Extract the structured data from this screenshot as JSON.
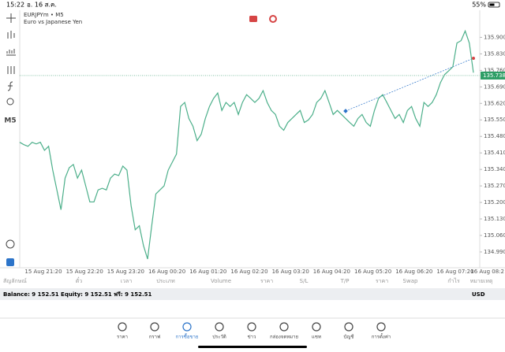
{
  "status": {
    "time": "15:22",
    "date": "อ. 16 ส.ค.",
    "battery": "55%"
  },
  "toolbar": {
    "timeframe": "M5"
  },
  "chart_data": {
    "type": "line",
    "title": "EURJPYm • M5",
    "subtitle": "Euro vs Japanese Yen",
    "color": "#4caf8a",
    "values": [
      135.455,
      135.445,
      135.438,
      135.455,
      135.448,
      135.455,
      135.421,
      135.438,
      135.337,
      135.253,
      135.169,
      135.303,
      135.347,
      135.361,
      135.303,
      135.337,
      135.27,
      135.202,
      135.202,
      135.253,
      135.26,
      135.253,
      135.303,
      135.32,
      135.314,
      135.354,
      135.337,
      135.186,
      135.084,
      135.101,
      135.017,
      134.96,
      135.101,
      135.236,
      135.253,
      135.27,
      135.337,
      135.371,
      135.405,
      135.607,
      135.624,
      135.556,
      135.523,
      135.462,
      135.489,
      135.556,
      135.607,
      135.641,
      135.664,
      135.59,
      135.624,
      135.607,
      135.624,
      135.573,
      135.624,
      135.657,
      135.641,
      135.624,
      135.641,
      135.674,
      135.624,
      135.59,
      135.573,
      135.523,
      135.506,
      135.539,
      135.556,
      135.573,
      135.59,
      135.539,
      135.55,
      135.573,
      135.624,
      135.641,
      135.674,
      135.624,
      135.573,
      135.59,
      135.573,
      135.556,
      135.539,
      135.523,
      135.556,
      135.573,
      135.539,
      135.523,
      135.59,
      135.641,
      135.657,
      135.624,
      135.59,
      135.556,
      135.573,
      135.539,
      135.59,
      135.607,
      135.556,
      135.523,
      135.624,
      135.607,
      135.624,
      135.657,
      135.708,
      135.742,
      135.758,
      135.775,
      135.876,
      135.886,
      135.927,
      135.876,
      135.75
    ],
    "xticks": [
      "15 Aug 21:20",
      "15 Aug 22:20",
      "15 Aug 23:20",
      "16 Aug 00:20",
      "16 Aug 01:20",
      "16 Aug 02:20",
      "16 Aug 03:20",
      "16 Aug 04:20",
      "16 Aug 05:20",
      "16 Aug 06:20",
      "16 Aug 07:20",
      "16 Aug 08:2"
    ],
    "ylim": [
      134.923,
      136.015
    ],
    "yticks": [
      {
        "value": 135.9,
        "label": "135.900"
      },
      {
        "value": 135.83,
        "label": "135.830"
      },
      {
        "value": 135.76,
        "label": "135.760"
      },
      {
        "value": 135.69,
        "label": "135.690"
      },
      {
        "value": 135.62,
        "label": "135.620"
      },
      {
        "value": 135.55,
        "label": "135.550"
      },
      {
        "value": 135.48,
        "label": "135.480"
      },
      {
        "value": 135.41,
        "label": "135.410"
      },
      {
        "value": 135.34,
        "label": "135.340"
      },
      {
        "value": 135.27,
        "label": "135.270"
      },
      {
        "value": 135.2,
        "label": "135.200"
      },
      {
        "value": 135.13,
        "label": "135.130"
      },
      {
        "value": 135.06,
        "label": "135.060"
      },
      {
        "value": 134.99,
        "label": "134.990"
      }
    ],
    "last_price": 135.738
  },
  "table": {
    "columns": [
      "สัญลักษณ์",
      "ตั๋ว",
      "เวลา",
      "ประเภท",
      "Volume",
      "ราคา",
      "S/L",
      "T/P",
      "ราคา",
      "Swap",
      "กำไร",
      "หมายเหตุ"
    ]
  },
  "balance": {
    "text": "Balance: 9 152.51 Equity: 9 152.51 ฟรี: 9 152.51",
    "currency": "USD"
  },
  "nav": [
    "ราคา",
    "กราฟ",
    "การซื้อขาย",
    "ประวัติ",
    "ข่าว",
    "กล่องจดหมาย",
    "แชท",
    "บัญชี",
    "การตั้งค่า"
  ]
}
